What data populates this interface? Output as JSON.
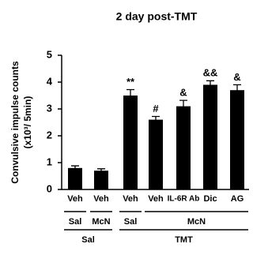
{
  "chart_data": {
    "type": "bar",
    "title": "2 day post-TMT",
    "y_label": [
      "Convulsive impulse counts",
      "(x10³/ 5min)"
    ],
    "categories": [
      "Veh",
      "Veh",
      "Veh",
      "Veh",
      "IL-6R Ab",
      "Dic",
      "AG"
    ],
    "values": [
      0.8,
      0.7,
      3.5,
      2.6,
      3.1,
      3.9,
      3.7
    ],
    "errors": [
      0.08,
      0.07,
      0.22,
      0.12,
      0.22,
      0.15,
      0.2
    ],
    "annotations": [
      null,
      null,
      "**",
      "#",
      "&",
      "&&",
      "&"
    ],
    "color": "#000000",
    "group_rows": [
      [
        "Sal",
        "McN",
        "Sal",
        "McN"
      ],
      [
        "Sal",
        "TMT"
      ]
    ],
    "ylim": [
      0,
      5
    ],
    "yticks": [
      0,
      1,
      2,
      3,
      4,
      5
    ],
    "grid": false
  }
}
